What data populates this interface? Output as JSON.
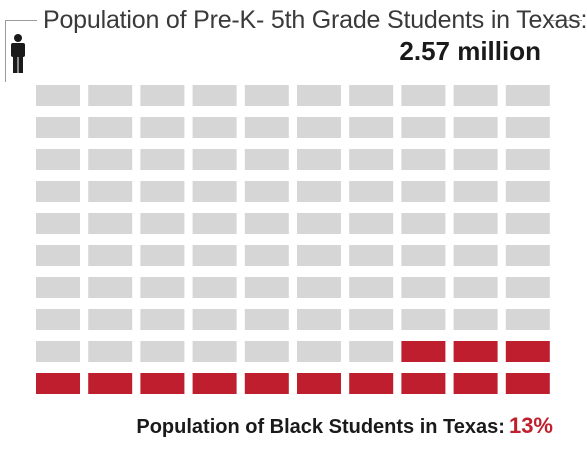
{
  "header": {
    "title": "Population of Pre-K- 5th Grade Students in Texas:",
    "total": "2.57 million"
  },
  "footer": {
    "label": "Population of Black Students in Texas:",
    "value": "13%"
  },
  "colors": {
    "highlight": "#be1e2d",
    "base": "#d6d6d6",
    "text": "#1a1a1a"
  },
  "icons": {
    "person": "person-icon"
  },
  "chart_data": {
    "type": "waffle",
    "title": "Population of Pre-K- 5th Grade Students in Texas:",
    "total": "2.57 million",
    "rows": 10,
    "cols": 10,
    "series": [
      {
        "name": "Population of Black Students in Texas:",
        "value": 13,
        "color": "#be1e2d"
      },
      {
        "value": 87,
        "color": "#d6d6d6"
      }
    ]
  }
}
